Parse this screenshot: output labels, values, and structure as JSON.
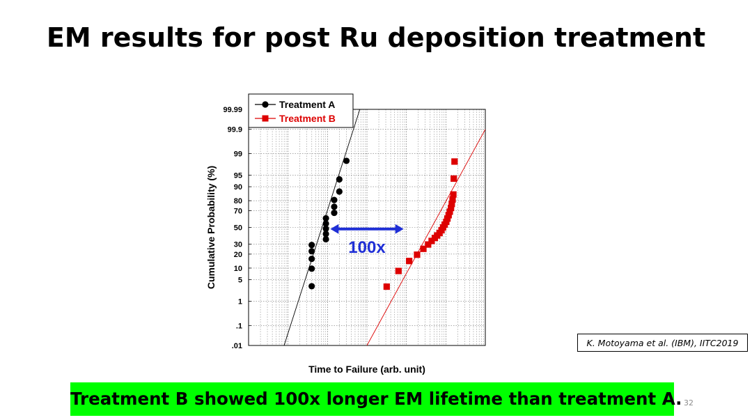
{
  "slide": {
    "title": "EM results for post Ru deposition treatment",
    "citation": "K. Motoyama et al. (IBM), IITC2019",
    "conclusion": "Treatment B showed 100x longer EM lifetime than treatment A.",
    "page_number": "32"
  },
  "chart_data": {
    "type": "scatter",
    "xlabel": "Time to Failure (arb. unit)",
    "ylabel": "Cumulative Probability (%)",
    "x_scale": "log",
    "x_ticklabels_shown": false,
    "x_range_decades": [
      0,
      6
    ],
    "y_scale": "normal-probability",
    "yticks": [
      0.01,
      0.1,
      1,
      5,
      10,
      20,
      30,
      50,
      70,
      80,
      90,
      95,
      99,
      99.9,
      99.99
    ],
    "ytick_labels": [
      ".01",
      ".1",
      "1",
      "5",
      "10",
      "20",
      "30",
      "50",
      "70",
      "80",
      "90",
      "95",
      "99",
      "99.9",
      "99.99"
    ],
    "grid": true,
    "legend_position": "top-left",
    "series": [
      {
        "name": "Treatment A",
        "color": "#000000",
        "marker": "circle",
        "points": [
          {
            "decade": 1.6,
            "p": 3.2
          },
          {
            "decade": 1.6,
            "p": 9.7
          },
          {
            "decade": 1.6,
            "p": 16.1
          },
          {
            "decade": 1.6,
            "p": 22.6
          },
          {
            "decade": 1.6,
            "p": 29.0
          },
          {
            "decade": 1.96,
            "p": 35.5
          },
          {
            "decade": 1.96,
            "p": 41.9
          },
          {
            "decade": 1.96,
            "p": 48.4
          },
          {
            "decade": 1.96,
            "p": 54.8
          },
          {
            "decade": 1.96,
            "p": 61.3
          },
          {
            "decade": 2.17,
            "p": 67.7
          },
          {
            "decade": 2.17,
            "p": 74.2
          },
          {
            "decade": 2.17,
            "p": 80.6
          },
          {
            "decade": 2.3,
            "p": 87.1
          },
          {
            "decade": 2.3,
            "p": 93.5
          },
          {
            "decade": 2.48,
            "p": 98.2
          }
        ],
        "fit_line": [
          {
            "decade": 0.9,
            "p": 0.01
          },
          {
            "decade": 2.82,
            "p": 99.99
          }
        ]
      },
      {
        "name": "Treatment B",
        "color": "#dd0000",
        "marker": "square",
        "points": [
          {
            "decade": 3.5,
            "p": 3.1
          },
          {
            "decade": 3.8,
            "p": 8.5
          },
          {
            "decade": 4.07,
            "p": 14.5
          },
          {
            "decade": 4.27,
            "p": 19.5
          },
          {
            "decade": 4.43,
            "p": 25.0
          },
          {
            "decade": 4.55,
            "p": 29.5
          },
          {
            "decade": 4.64,
            "p": 33.5
          },
          {
            "decade": 4.72,
            "p": 37.0
          },
          {
            "decade": 4.78,
            "p": 40.0
          },
          {
            "decade": 4.84,
            "p": 43.0
          },
          {
            "decade": 4.89,
            "p": 46.5
          },
          {
            "decade": 4.93,
            "p": 50.0
          },
          {
            "decade": 4.97,
            "p": 53.5
          },
          {
            "decade": 5.01,
            "p": 57.0
          },
          {
            "decade": 5.04,
            "p": 61.0
          },
          {
            "decade": 5.07,
            "p": 65.0
          },
          {
            "decade": 5.1,
            "p": 69.0
          },
          {
            "decade": 5.13,
            "p": 73.0
          },
          {
            "decade": 5.15,
            "p": 77.0
          },
          {
            "decade": 5.17,
            "p": 81.0
          },
          {
            "decade": 5.19,
            "p": 85.0
          },
          {
            "decade": 5.2,
            "p": 93.8
          },
          {
            "decade": 5.22,
            "p": 98.1
          }
        ],
        "fit_line": [
          {
            "decade": 3.0,
            "p": 0.01
          },
          {
            "decade": 6.0,
            "p": 99.9
          }
        ]
      }
    ],
    "annotation": {
      "text": "100x",
      "color": "#1f2fd6",
      "arrow": {
        "from_decade": 2.0,
        "to_decade": 4.0,
        "p": 48
      }
    }
  }
}
